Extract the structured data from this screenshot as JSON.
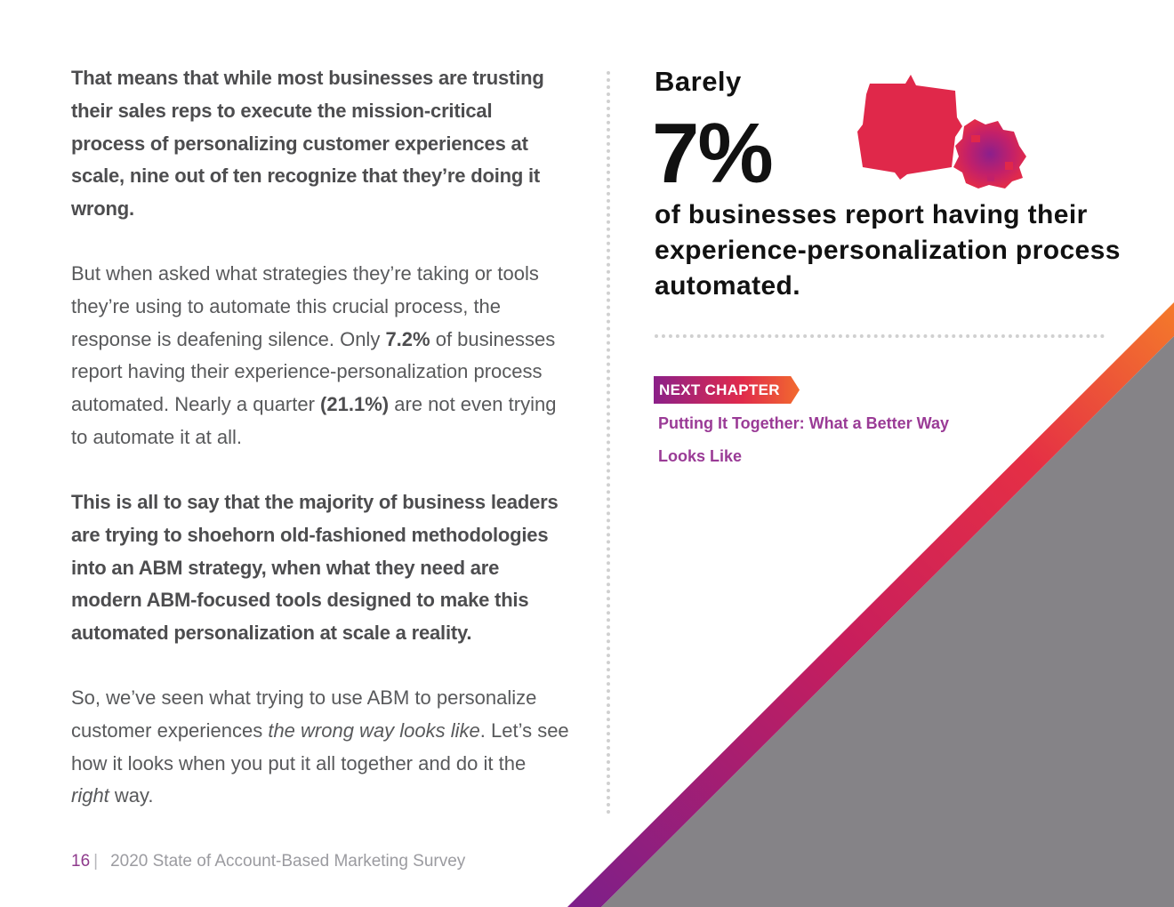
{
  "colors": {
    "accent_purple": "#8e3a8c",
    "accent_red": "#e0284a",
    "accent_orange": "#f26a2e",
    "gray_panel": "#858387",
    "text_dark": "#4d4d4f"
  },
  "left": {
    "p1": "That means that while most businesses are trusting their sales reps to execute the mission-critical process of personalizing customer experiences at scale, nine out of ten recognize that they’re doing it wrong.",
    "p2": {
      "a": "But when asked what strategies they’re taking or tools they’re using to automate this crucial process, the response is deafening silence. Only ",
      "b": "7.2%",
      "c": " of businesses report having their experience-personalization process automated. Nearly a quarter ",
      "d": "(21.1%)",
      "e": " are not even trying to automate it at all."
    },
    "p3": "This is all to say that the majority of business leaders are trying to shoehorn old-fashioned methodologies into an ABM strategy, when what they need are modern ABM-focused tools designed to make this automated personalization at scale a reality.",
    "p4": {
      "a": "So, we’ve seen what trying to use ABM to personalize customer experiences ",
      "b": "the wrong way looks like",
      "c": ". Let’s see how it looks when you put it all together and do it the ",
      "d": "right",
      "e": " way."
    }
  },
  "stat": {
    "label": "Barely",
    "value": "7%",
    "description": "of businesses report having their experience-personalization process automated."
  },
  "next": {
    "tag": "NEXT CHAPTER",
    "title": "Putting It Together: What a Better Way Looks Like"
  },
  "footer": {
    "page": "16",
    "separator": "|",
    "title": "2020 State of Account-Based Marketing Survey"
  }
}
